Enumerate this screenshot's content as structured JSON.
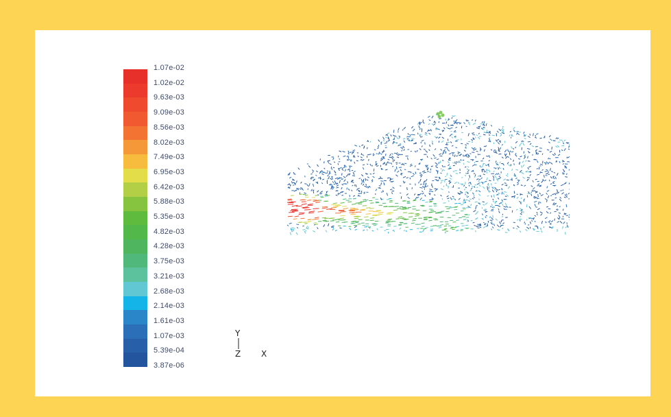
{
  "legend": {
    "labels": [
      "1.07e-02",
      "1.02e-02",
      "9.63e-03",
      "9.09e-03",
      "8.56e-03",
      "8.02e-03",
      "7.49e-03",
      "6.95e-03",
      "6.42e-03",
      "5.88e-03",
      "5.35e-03",
      "4.82e-03",
      "4.28e-03",
      "3.75e-03",
      "3.21e-03",
      "2.68e-03",
      "2.14e-03",
      "1.61e-03",
      "1.07e-03",
      "5.39e-04",
      "3.87e-06"
    ],
    "colors": [
      "#e8302a",
      "#ec3a2c",
      "#ef4a2e",
      "#f15a30",
      "#f27332",
      "#f59838",
      "#f7bc3e",
      "#e3dd4a",
      "#b3cf45",
      "#86c43f",
      "#5ebb3e",
      "#52b84a",
      "#4fb55e",
      "#50b87a",
      "#5cc29e",
      "#61c8d3",
      "#14b3e8",
      "#2a86c8",
      "#2a6fb7",
      "#275fa8",
      "#23559e"
    ]
  },
  "axes": {
    "y": "Y",
    "z": "Z",
    "x": "X"
  }
}
